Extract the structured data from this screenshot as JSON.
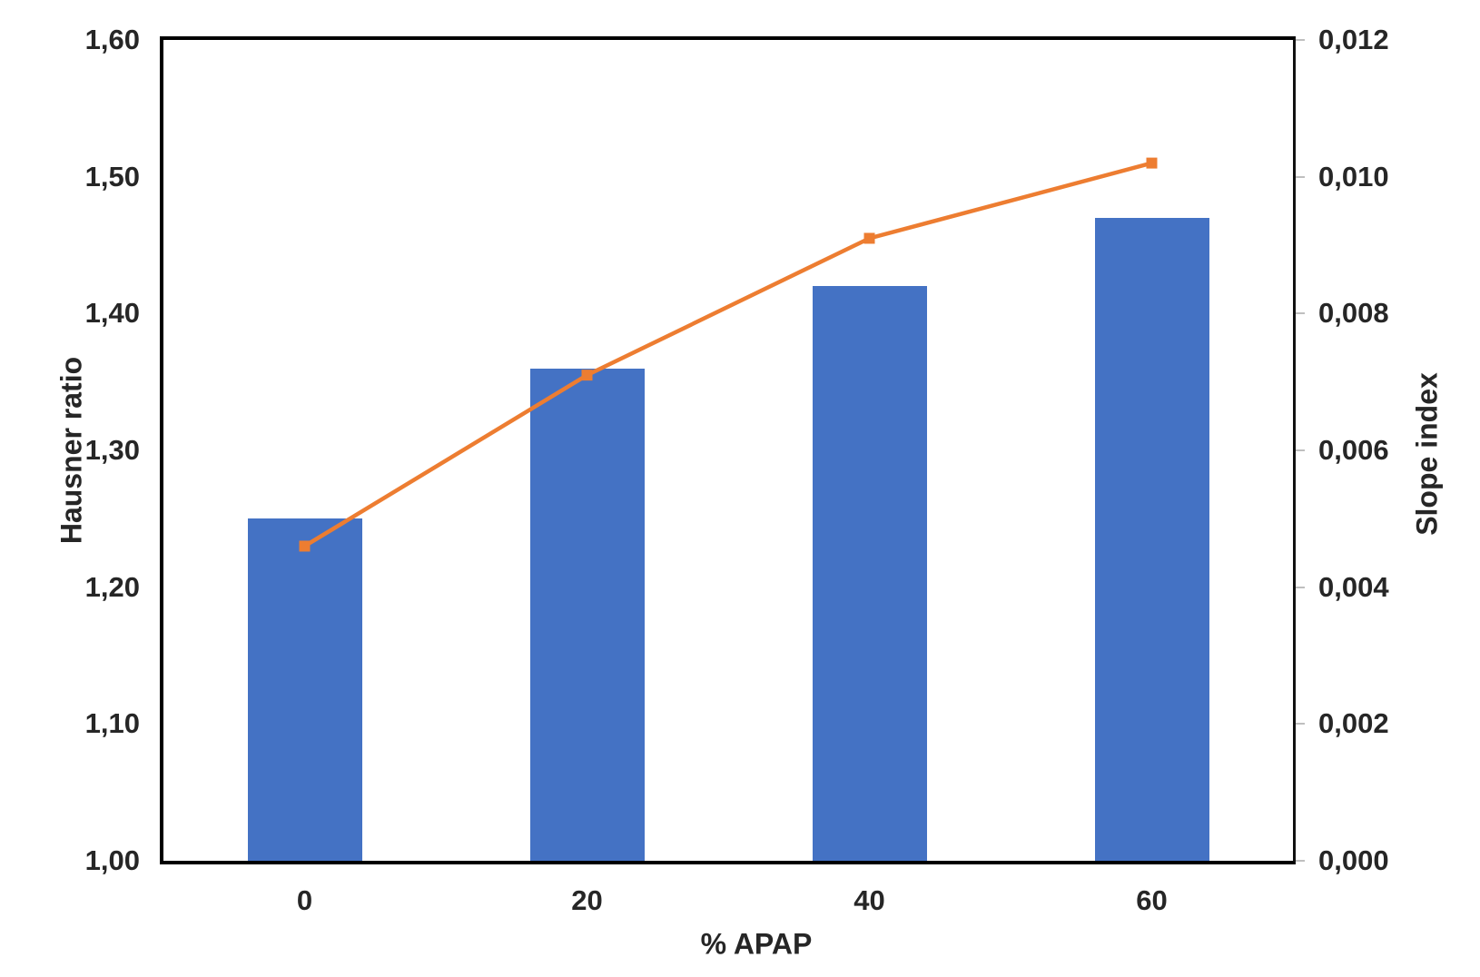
{
  "chart_data": {
    "type": "bar",
    "subtype": "combo-bar-line-dual-axis",
    "categories": [
      "0",
      "20",
      "40",
      "60"
    ],
    "series": [
      {
        "name": "Hausner ratio",
        "render": "bar",
        "axis": "left",
        "values": [
          1.25,
          1.36,
          1.42,
          1.47
        ],
        "color": "#4472C4"
      },
      {
        "name": "Slope index",
        "render": "line",
        "axis": "right",
        "values": [
          0.0046,
          0.0071,
          0.0091,
          0.0102
        ],
        "color": "#ED7D31",
        "marker": "square"
      }
    ],
    "title": "",
    "xlabel": "% APAP",
    "ylabel_left": "Hausner ratio",
    "ylabel_right": "Slope index",
    "ylim_left": [
      1.0,
      1.6
    ],
    "ylim_right": [
      0.0,
      0.012
    ],
    "yticks_left_labels": [
      "1,60",
      "1,50",
      "1,40",
      "1,30",
      "1,20",
      "1,10",
      "1,00"
    ],
    "yticks_right_labels": [
      "0,012",
      "0,010",
      "0,008",
      "0,006",
      "0,004",
      "0,002",
      "0,000"
    ],
    "decimal_separator": ",",
    "grid": false,
    "legend_position": "none",
    "colors": {
      "bar": "#4472C4",
      "line": "#ED7D31",
      "axis_border": "#000000",
      "tick_mark": "#BFBFBF",
      "text": "#262626",
      "background": "#ffffff"
    }
  }
}
